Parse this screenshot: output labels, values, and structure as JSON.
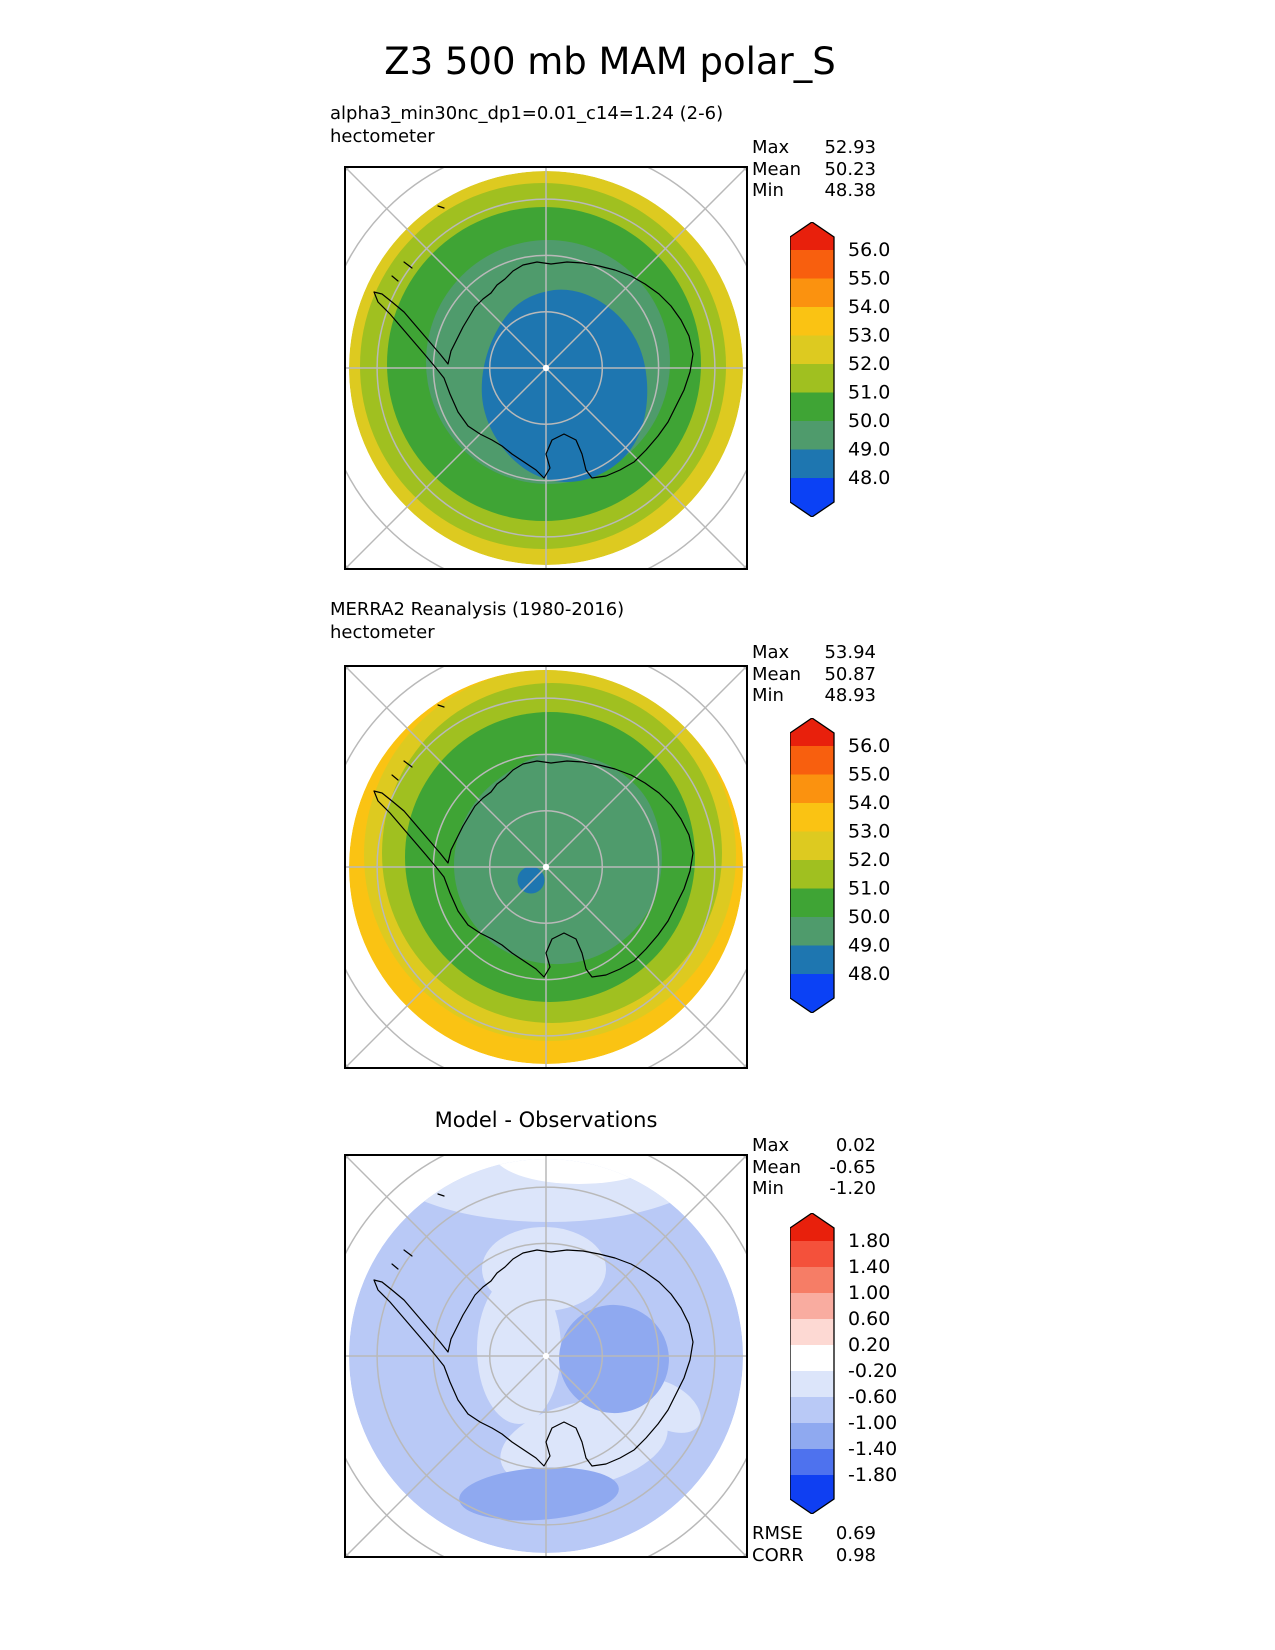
{
  "title": "Z3 500 mb MAM polar_S",
  "panels": [
    {
      "subtitle": "alpha3_min30nc_dp1=0.01_c14=1.24 (2-6)",
      "units": "hectometer",
      "stats": {
        "max_label": "Max",
        "max_value": "52.93",
        "mean_label": "Mean",
        "mean_value": "50.23",
        "min_label": "Min",
        "min_value": "48.38"
      }
    },
    {
      "subtitle": "MERRA2 Reanalysis (1980-2016)",
      "units": "hectometer",
      "stats": {
        "max_label": "Max",
        "max_value": "53.94",
        "mean_label": "Mean",
        "mean_value": "50.87",
        "min_label": "Min",
        "min_value": "48.93"
      }
    },
    {
      "subtitle": "Model - Observations",
      "stats": {
        "max_label": "Max",
        "max_value": "0.02",
        "mean_label": "Mean",
        "mean_value": "-0.65",
        "min_label": "Min",
        "min_value": "-1.20"
      },
      "metrics": {
        "rmse_label": "RMSE",
        "rmse_value": "0.69",
        "corr_label": "CORR",
        "corr_value": "0.98"
      }
    }
  ],
  "colorbars": [
    {
      "labels": [
        "56.0",
        "55.0",
        "54.0",
        "53.0",
        "52.0",
        "51.0",
        "50.0",
        "49.0",
        "48.0"
      ],
      "colors": [
        "#e8200c",
        "#f85f0e",
        "#fb920f",
        "#fac313",
        "#ddca20",
        "#a0c020",
        "#3fa435",
        "#4f9b6c",
        "#1e76b0",
        "#0b41f5"
      ],
      "step": 28.5
    },
    {
      "labels": [
        "56.0",
        "55.0",
        "54.0",
        "53.0",
        "52.0",
        "51.0",
        "50.0",
        "49.0",
        "48.0"
      ],
      "colors": [
        "#e8200c",
        "#f85f0e",
        "#fb920f",
        "#fac313",
        "#ddca20",
        "#a0c020",
        "#3fa435",
        "#4f9b6c",
        "#1e76b0",
        "#0b41f5"
      ],
      "step": 28.5
    },
    {
      "labels": [
        "1.80",
        "1.40",
        "1.00",
        "0.60",
        "0.20",
        "-0.20",
        "-0.60",
        "-1.00",
        "-1.40",
        "-1.80"
      ],
      "colors": [
        "#e8200c",
        "#f4513b",
        "#f67d66",
        "#f9aca0",
        "#fdd9d3",
        "#ffffff",
        "#dce5fa",
        "#b9c9f6",
        "#8fa9f0",
        "#4e72ee",
        "#0f3ff2"
      ],
      "step": 26
    }
  ],
  "map_style": {
    "grid_color": "#b9b9b9",
    "coast_color": "#000000",
    "border_color": "#000000",
    "pole_dot_color": "#ffffff",
    "background": "#ffffff"
  },
  "chart_data": [
    {
      "type": "heatmap",
      "title": "alpha3_min30nc_dp1=0.01_c14=1.24 (2-6)",
      "variable": "Z3 500 mb MAM",
      "projection": "south polar stereographic (pole centered, ~20S edge)",
      "units": "hectometer",
      "stats": {
        "max": 52.93,
        "mean": 50.23,
        "min": 48.38
      },
      "levels": [
        48.0,
        49.0,
        50.0,
        51.0,
        52.0,
        53.0,
        54.0,
        55.0,
        56.0
      ],
      "level_colors_low_to_high": [
        "#0b41f5",
        "#1e76b0",
        "#4f9b6c",
        "#3fa435",
        "#a0c020",
        "#ddca20",
        "#fac313",
        "#fb920f",
        "#f85f0e",
        "#e8200c"
      ],
      "legend_position": "right",
      "pattern": "Concentric rings: ~52-53 hm at the 20S edge decreasing inward; broad 48-49 hm blue low covering the pole, offset toward 90E"
    },
    {
      "type": "heatmap",
      "title": "MERRA2 Reanalysis (1980-2016)",
      "variable": "Z3 500 mb MAM",
      "projection": "south polar stereographic (pole centered, ~20S edge)",
      "units": "hectometer",
      "stats": {
        "max": 53.94,
        "mean": 50.87,
        "min": 48.93
      },
      "levels": [
        48.0,
        49.0,
        50.0,
        51.0,
        52.0,
        53.0,
        54.0,
        55.0,
        56.0
      ],
      "level_colors_low_to_high": [
        "#0b41f5",
        "#1e76b0",
        "#4f9b6c",
        "#3fa435",
        "#a0c020",
        "#ddca20",
        "#fac313",
        "#fb920f",
        "#f85f0e",
        "#e8200c"
      ],
      "legend_position": "right",
      "pattern": "Concentric rings: 53-54 hm amber at edge (thickest at bottom), decreasing to broad 49-50 hm sea-green over the pole with a small 48-49 hm spot just south of the pole"
    },
    {
      "type": "heatmap",
      "title": "Model - Observations",
      "variable": "Z3 500 mb MAM difference",
      "projection": "south polar stereographic (pole centered, ~20S edge)",
      "units": "hectometer",
      "stats": {
        "max": 0.02,
        "mean": -0.65,
        "min": -1.2
      },
      "levels": [
        -1.8,
        -1.4,
        -1.0,
        -0.6,
        -0.2,
        0.2,
        0.6,
        1.0,
        1.4,
        1.8
      ],
      "level_colors_low_to_high": [
        "#0f3ff2",
        "#4e72ee",
        "#8fa9f0",
        "#b9c9f6",
        "#dce5fa",
        "#ffffff",
        "#fdd9d3",
        "#f9aca0",
        "#f67d66",
        "#f4513b",
        "#e8200c"
      ],
      "legend_position": "right",
      "metrics": {
        "rmse": 0.69,
        "corr": 0.98
      },
      "pattern": "Negative bias nearly everywhere: mostly -0.6 to -1.0 light periwinkle, -1.0 to -1.4 blobs east of the pole and along the bottom, -0.2 to -0.6 pale spiral near the pole, near-zero white at the northern edge"
    }
  ]
}
